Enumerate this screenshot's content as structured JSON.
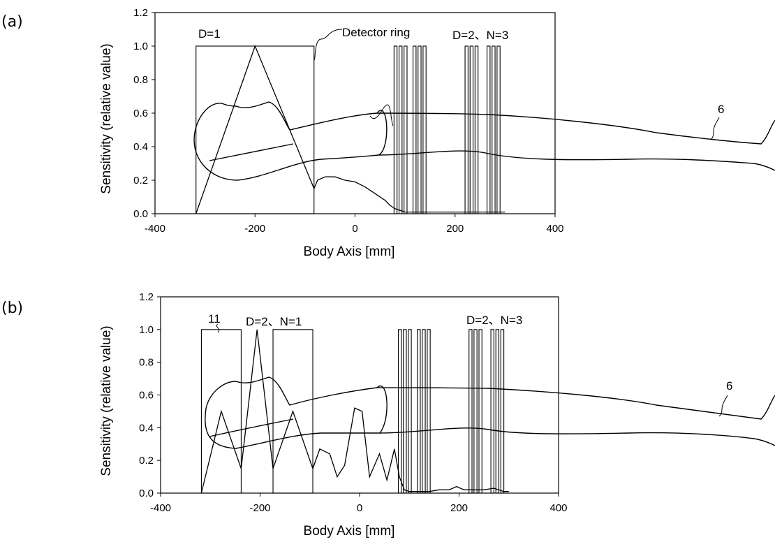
{
  "chart_data": [
    {
      "type": "line",
      "panel_label": "(a)",
      "xlabel": "Body Axis [mm]",
      "ylabel": "Sensitivity (relative value)",
      "xlim": [
        -400,
        400
      ],
      "ylim": [
        0.0,
        1.2
      ],
      "x_ticks": [
        "-400",
        "-200",
        "0",
        "200",
        "400"
      ],
      "y_ticks": [
        "0.0",
        "0.2",
        "0.4",
        "0.6",
        "0.8",
        "1.0",
        "1.2"
      ],
      "grid": false,
      "annotations": {
        "d1": "D=1",
        "detector_ring": "Detector ring",
        "d2n3": "D=2、N=3",
        "body_ref": "6"
      },
      "detector_blocks": [
        {
          "x0": -318,
          "x1": -82,
          "height": 1.0
        },
        {
          "x0": 78,
          "x1": 84,
          "height": 1.0
        },
        {
          "x0": 88,
          "x1": 94,
          "height": 1.0
        },
        {
          "x0": 98,
          "x1": 104,
          "height": 1.0
        },
        {
          "x0": 116,
          "x1": 122,
          "height": 1.0
        },
        {
          "x0": 126,
          "x1": 132,
          "height": 1.0
        },
        {
          "x0": 136,
          "x1": 142,
          "height": 1.0
        },
        {
          "x0": 220,
          "x1": 226,
          "height": 1.0
        },
        {
          "x0": 230,
          "x1": 236,
          "height": 1.0
        },
        {
          "x0": 240,
          "x1": 246,
          "height": 1.0
        },
        {
          "x0": 264,
          "x1": 270,
          "height": 1.0
        },
        {
          "x0": 274,
          "x1": 280,
          "height": 1.0
        },
        {
          "x0": 284,
          "x1": 290,
          "height": 1.0
        }
      ],
      "series": [
        {
          "x": [
            -318,
            -200,
            -82,
            -75,
            -60,
            -40,
            -20,
            0,
            20,
            40,
            60,
            70,
            80,
            90,
            100,
            120,
            140,
            160,
            180,
            200,
            220,
            240,
            260,
            280,
            300
          ],
          "values": [
            0.0,
            1.0,
            0.15,
            0.2,
            0.22,
            0.22,
            0.2,
            0.19,
            0.16,
            0.12,
            0.08,
            0.05,
            0.03,
            0.02,
            0.01,
            0.01,
            0.01,
            0.01,
            0.01,
            0.01,
            0.01,
            0.01,
            0.01,
            0.01,
            0.01
          ]
        }
      ]
    },
    {
      "type": "line",
      "panel_label": "(b)",
      "xlabel": "Body Axis [mm]",
      "ylabel": "Sensitivity (relative value)",
      "xlim": [
        -400,
        400
      ],
      "ylim": [
        0.0,
        1.2
      ],
      "x_ticks": [
        "-400",
        "-200",
        "0",
        "200",
        "400"
      ],
      "y_ticks": [
        "0.0",
        "0.2",
        "0.4",
        "0.6",
        "0.8",
        "1.0",
        "1.2"
      ],
      "grid": false,
      "annotations": {
        "ref11": "11",
        "d2n1": "D=2、N=1",
        "d2n3": "D=2、N=3",
        "body_ref": "6"
      },
      "detector_blocks": [
        {
          "x0": -318,
          "x1": -238,
          "height": 1.0
        },
        {
          "x0": -174,
          "x1": -94,
          "height": 1.0
        },
        {
          "x0": 78,
          "x1": 84,
          "height": 1.0
        },
        {
          "x0": 88,
          "x1": 94,
          "height": 1.0
        },
        {
          "x0": 98,
          "x1": 104,
          "height": 1.0
        },
        {
          "x0": 116,
          "x1": 122,
          "height": 1.0
        },
        {
          "x0": 126,
          "x1": 132,
          "height": 1.0
        },
        {
          "x0": 136,
          "x1": 142,
          "height": 1.0
        },
        {
          "x0": 220,
          "x1": 226,
          "height": 1.0
        },
        {
          "x0": 230,
          "x1": 236,
          "height": 1.0
        },
        {
          "x0": 240,
          "x1": 246,
          "height": 1.0
        },
        {
          "x0": 264,
          "x1": 270,
          "height": 1.0
        },
        {
          "x0": 274,
          "x1": 280,
          "height": 1.0
        },
        {
          "x0": 284,
          "x1": 290,
          "height": 1.0
        }
      ],
      "series": [
        {
          "x": [
            -318,
            -278,
            -238,
            -206,
            -174,
            -134,
            -94,
            -80,
            -60,
            -45,
            -30,
            -10,
            5,
            20,
            40,
            55,
            70,
            80,
            90,
            100,
            120,
            140,
            160,
            180,
            195,
            210,
            230,
            250,
            270,
            290,
            300
          ],
          "values": [
            0.0,
            0.5,
            0.15,
            1.0,
            0.15,
            0.5,
            0.15,
            0.27,
            0.24,
            0.1,
            0.17,
            0.52,
            0.5,
            0.1,
            0.24,
            0.08,
            0.27,
            0.1,
            0.02,
            0.01,
            0.01,
            0.01,
            0.02,
            0.02,
            0.04,
            0.02,
            0.02,
            0.02,
            0.03,
            0.01,
            0.01
          ]
        }
      ]
    }
  ]
}
